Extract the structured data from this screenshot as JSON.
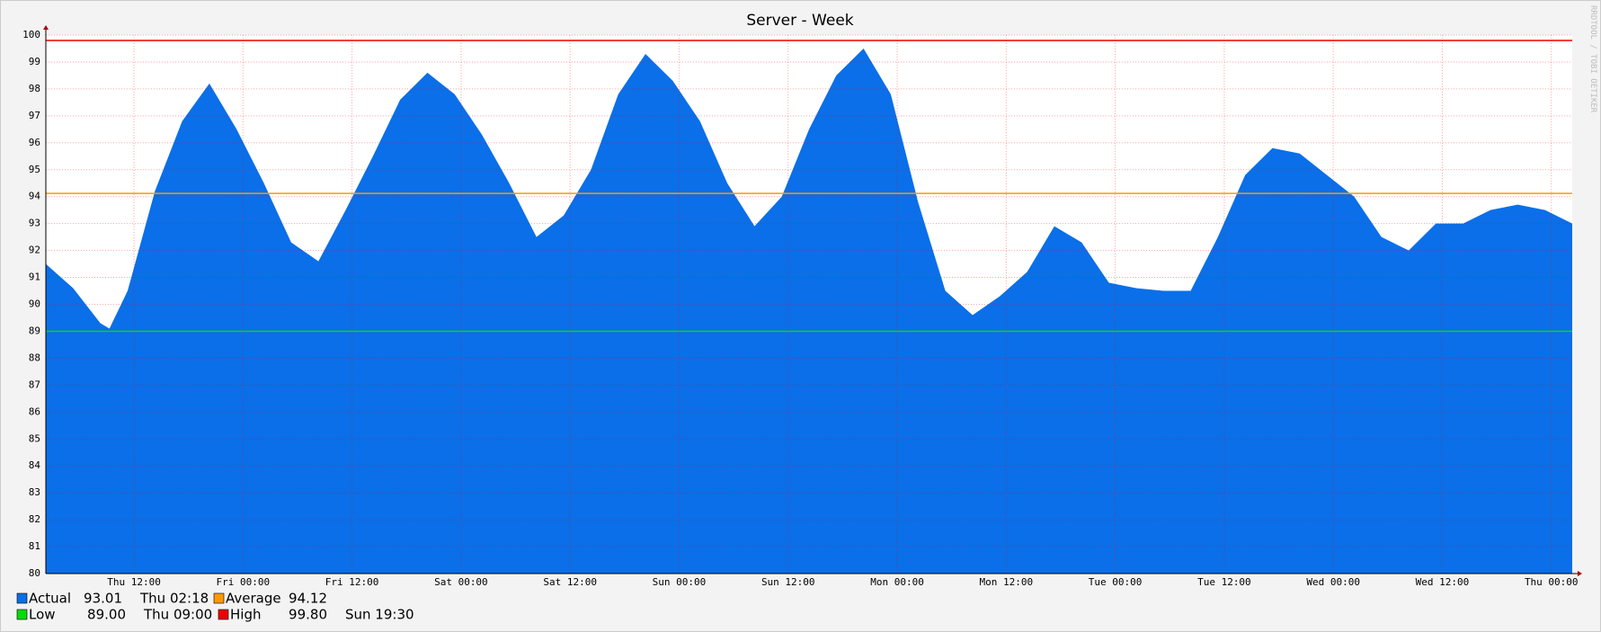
{
  "chart_data": {
    "type": "area",
    "title": "Server - Week",
    "watermark": "RRDTOOL / TOBI OETIKER",
    "x": [
      0,
      3,
      6,
      7,
      9,
      12,
      15,
      18,
      21,
      24,
      27,
      30,
      33,
      36,
      39,
      42,
      45,
      48,
      51,
      54,
      57,
      60,
      63,
      66,
      69,
      72,
      75,
      78,
      81,
      84,
      87,
      90,
      93,
      96,
      99,
      102,
      105,
      108,
      111,
      114,
      117,
      120,
      123,
      126,
      129,
      132,
      135,
      138,
      141,
      144,
      147,
      150,
      153,
      156,
      159,
      162,
      165,
      168
    ],
    "series": [
      {
        "name": "Actual",
        "color": "#0a6fe8",
        "values": [
          91.5,
          90.6,
          89.3,
          89.1,
          90.5,
          94.2,
          96.8,
          98.2,
          96.5,
          94.5,
          92.3,
          91.6,
          93.5,
          95.5,
          97.6,
          98.6,
          97.8,
          96.3,
          94.5,
          92.5,
          93.3,
          95.0,
          97.8,
          99.3,
          98.3,
          96.8,
          94.5,
          92.9,
          94.0,
          96.5,
          98.5,
          99.5,
          97.8,
          93.8,
          90.5,
          89.6,
          90.3,
          91.2,
          92.9,
          92.3,
          90.8,
          90.6,
          90.5,
          90.5,
          92.5,
          94.8,
          95.8,
          95.6,
          94.8,
          94.0,
          92.5,
          92.0,
          93.0,
          93.0,
          93.5,
          93.7,
          93.5,
          93.0
        ],
        "last": 93.01,
        "last_time": "Thu 02:18"
      }
    ],
    "hlines": [
      {
        "name": "Average",
        "value": 94.12,
        "color": "#ff9900"
      },
      {
        "name": "Low",
        "value": 89,
        "value_label": "89.00",
        "time": "Thu 09:00",
        "color": "#00dd00"
      },
      {
        "name": "High",
        "value": 99.8,
        "value_label": "99.80",
        "time": "Sun 19:30",
        "color": "#ee0000"
      }
    ],
    "xlim": [
      0,
      168
    ],
    "xticks": [
      {
        "value": 9.7,
        "label": "Thu 12:00"
      },
      {
        "value": 21.7,
        "label": "Fri 00:00"
      },
      {
        "value": 33.7,
        "label": "Fri 12:00"
      },
      {
        "value": 45.7,
        "label": "Sat 00:00"
      },
      {
        "value": 57.7,
        "label": "Sat 12:00"
      },
      {
        "value": 69.7,
        "label": "Sun 00:00"
      },
      {
        "value": 81.7,
        "label": "Sun 12:00"
      },
      {
        "value": 93.7,
        "label": "Mon 00:00"
      },
      {
        "value": 105.7,
        "label": "Mon 12:00"
      },
      {
        "value": 117.7,
        "label": "Tue 00:00"
      },
      {
        "value": 129.7,
        "label": "Tue 12:00"
      },
      {
        "value": 141.7,
        "label": "Wed 00:00"
      },
      {
        "value": 153.7,
        "label": "Wed 12:00"
      },
      {
        "value": 165.7,
        "label": "Thu 00:00"
      }
    ],
    "ylim": [
      80,
      100
    ],
    "yticks": [
      80,
      81,
      82,
      83,
      84,
      85,
      86,
      87,
      88,
      89,
      90,
      91,
      92,
      93,
      94,
      95,
      96,
      97,
      98,
      99,
      100
    ],
    "grid": true
  }
}
